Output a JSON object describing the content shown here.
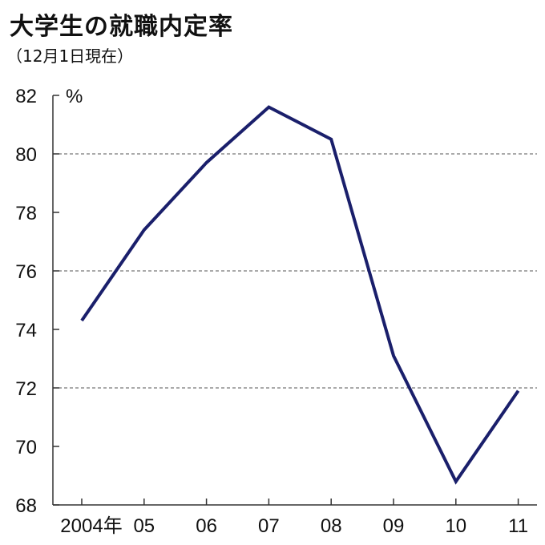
{
  "chart_data": {
    "type": "line",
    "title": "大学生の就職内定率",
    "subtitle": "（12月1日現在）",
    "unit_label": "%",
    "categories": [
      "2004年",
      "05",
      "06",
      "07",
      "08",
      "09",
      "10",
      "11"
    ],
    "series": [
      {
        "values": [
          74.3,
          77.4,
          79.7,
          81.6,
          80.5,
          73.1,
          68.8,
          71.9
        ],
        "color": "#1a1f6b"
      }
    ],
    "ylim": [
      68,
      82
    ],
    "yticks": [
      68,
      70,
      72,
      74,
      76,
      78,
      80,
      82
    ],
    "dashed_gridlines": [
      72,
      76,
      80
    ],
    "grid_color": "#555555",
    "axis_color": "#333333"
  }
}
